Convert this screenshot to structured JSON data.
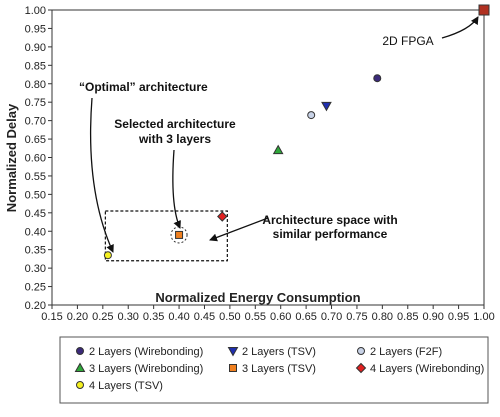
{
  "chart_data": {
    "type": "scatter",
    "xlabel": "Normalized Energy Consumption",
    "ylabel": "Normalized Delay",
    "xlim": [
      0.15,
      1.0
    ],
    "ylim": [
      0.2,
      1.0
    ],
    "x_ticks": [
      "0.15",
      "0.20",
      "0.25",
      "0.30",
      "0.35",
      "0.40",
      "0.45",
      "0.50",
      "0.55",
      "0.60",
      "0.65",
      "0.70",
      "0.75",
      "0.80",
      "0.85",
      "0.90",
      "0.95",
      "1.00"
    ],
    "y_ticks": [
      "0.20",
      "0.25",
      "0.30",
      "0.35",
      "0.40",
      "0.45",
      "0.50",
      "0.55",
      "0.60",
      "0.65",
      "0.70",
      "0.75",
      "0.80",
      "0.85",
      "0.90",
      "0.95",
      "1.00"
    ],
    "series": [
      {
        "name": "2 Layers (Wirebonding)",
        "marker": "circle",
        "color": "#3b2a7a",
        "points": [
          [
            0.79,
            0.815
          ]
        ]
      },
      {
        "name": "2 Layers (TSV)",
        "marker": "triangle-down",
        "color": "#1f2fb0",
        "points": [
          [
            0.69,
            0.74
          ]
        ]
      },
      {
        "name": "2 Layers (F2F)",
        "marker": "circle",
        "color": "#c8d2e6",
        "points": [
          [
            0.66,
            0.715
          ]
        ]
      },
      {
        "name": "3 Layers (Wirebonding)",
        "marker": "triangle-up",
        "color": "#2fa83a",
        "points": [
          [
            0.595,
            0.62
          ]
        ]
      },
      {
        "name": "3 Layers (TSV)",
        "marker": "square",
        "color": "#f08020",
        "points": [
          [
            0.4,
            0.39
          ]
        ]
      },
      {
        "name": "4 Layers (Wirebonding)",
        "marker": "diamond",
        "color": "#e02020",
        "points": [
          [
            0.485,
            0.44
          ]
        ]
      },
      {
        "name": "4 Layers (TSV)",
        "marker": "circle",
        "color": "#f4f020",
        "points": [
          [
            0.26,
            0.335
          ]
        ]
      },
      {
        "name": "",
        "marker": "square",
        "color": "#b03020",
        "points": [
          [
            1.0,
            1.0
          ]
        ]
      }
    ],
    "region_box": {
      "x": [
        0.255,
        0.495
      ],
      "y": [
        0.32,
        0.455
      ]
    },
    "annotations": {
      "fpga": "2D FPGA",
      "optimal": "“Optimal” architecture",
      "selected_line1": "Selected architecture",
      "selected_line2": "with 3 layers",
      "space_line1": "Architecture space with",
      "space_line2": "similar performance"
    },
    "legend_placement": "bottom",
    "grid": false
  },
  "legend": [
    {
      "label": "2 Layers (Wirebonding)",
      "marker": "circle",
      "color": "#3b2a7a"
    },
    {
      "label": "2 Layers (TSV)",
      "marker": "triangle-down",
      "color": "#1f2fb0"
    },
    {
      "label": "2 Layers (F2F)",
      "marker": "circle",
      "color": "#c8d2e6"
    },
    {
      "label": "3 Layers (Wirebonding)",
      "marker": "triangle-up",
      "color": "#2fa83a"
    },
    {
      "label": "3 Layers (TSV)",
      "marker": "square",
      "color": "#f08020"
    },
    {
      "label": "4 Layers (Wirebonding)",
      "marker": "diamond",
      "color": "#e02020"
    },
    {
      "label": "4 Layers (TSV)",
      "marker": "circle",
      "color": "#f4f020"
    }
  ]
}
